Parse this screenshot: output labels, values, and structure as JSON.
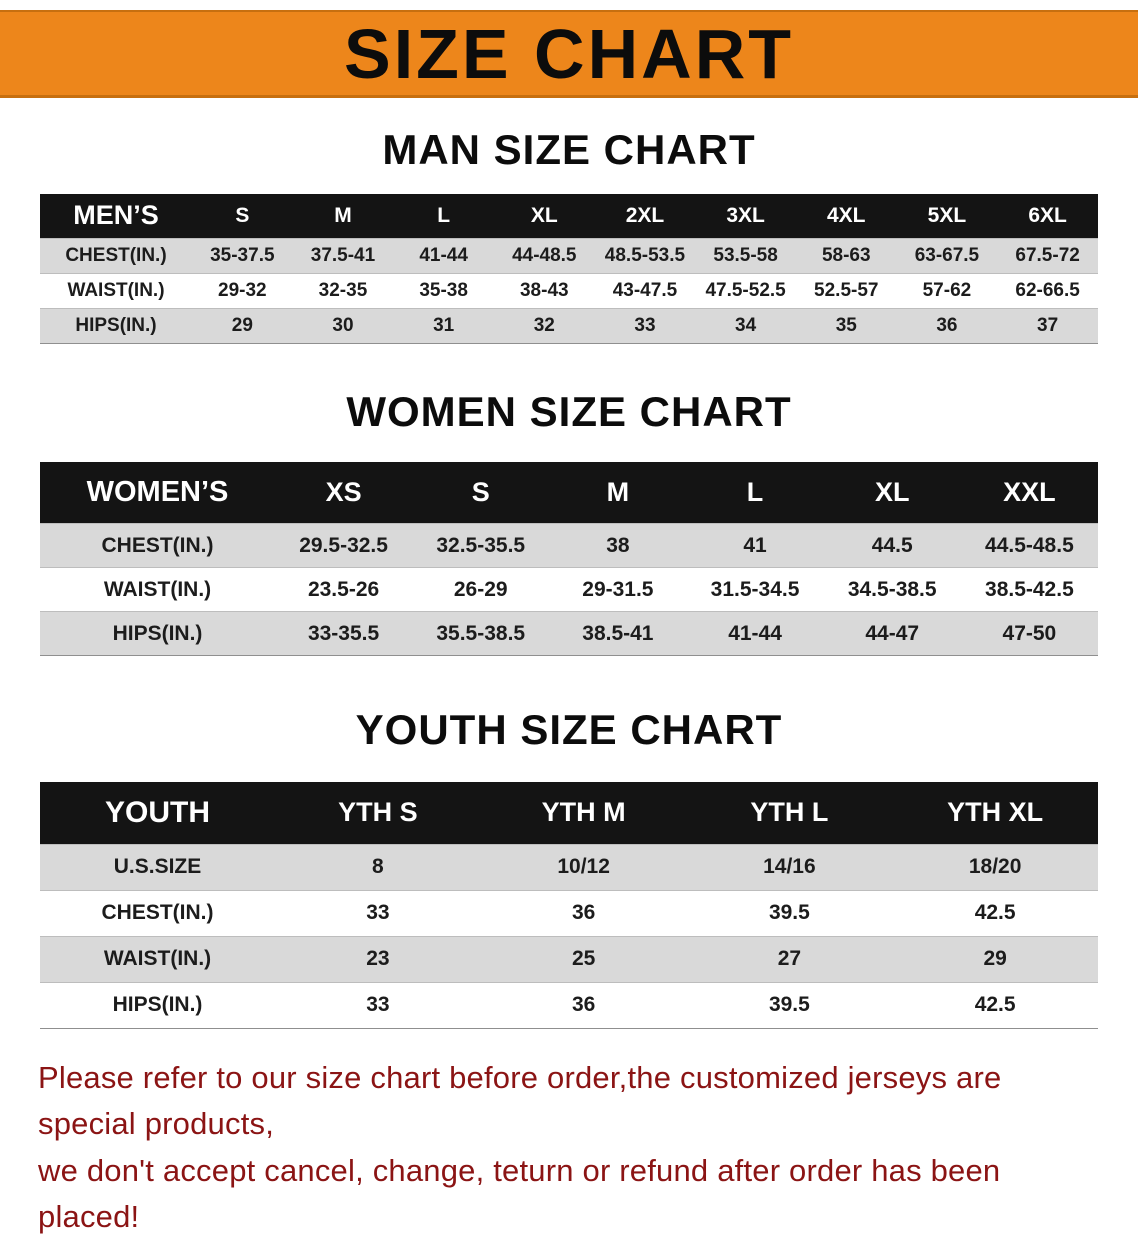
{
  "banner": {
    "title": "SIZE CHART"
  },
  "colors": {
    "banner-bg": "#ED861B",
    "header-bg": "#141414",
    "row-alt": "#d9d9d9",
    "disclaimer-color": "#8B1414"
  },
  "sections": [
    {
      "title": "MAN SIZE CHART",
      "table": {
        "header": [
          "MEN’S",
          "S",
          "M",
          "L",
          "XL",
          "2XL",
          "3XL",
          "4XL",
          "5XL",
          "6XL"
        ],
        "rows": [
          {
            "label": "CHEST(IN.)",
            "values": [
              "35-37.5",
              "37.5-41",
              "41-44",
              "44-48.5",
              "48.5-53.5",
              "53.5-58",
              "58-63",
              "63-67.5",
              "67.5-72"
            ]
          },
          {
            "label": "WAIST(IN.)",
            "values": [
              "29-32",
              "32-35",
              "35-38",
              "38-43",
              "43-47.5",
              "47.5-52.5",
              "52.5-57",
              "57-62",
              "62-66.5"
            ]
          },
          {
            "label": "HIPS(IN.)",
            "values": [
              "29",
              "30",
              "31",
              "32",
              "33",
              "34",
              "35",
              "36",
              "37"
            ]
          }
        ]
      }
    },
    {
      "title": "WOMEN SIZE CHART",
      "table": {
        "header": [
          "WOMEN’S",
          "XS",
          "S",
          "M",
          "L",
          "XL",
          "XXL"
        ],
        "rows": [
          {
            "label": "CHEST(IN.)",
            "values": [
              "29.5-32.5",
              "32.5-35.5",
              "38",
              "41",
              "44.5",
              "44.5-48.5"
            ]
          },
          {
            "label": "WAIST(IN.)",
            "values": [
              "23.5-26",
              "26-29",
              "29-31.5",
              "31.5-34.5",
              "34.5-38.5",
              "38.5-42.5"
            ]
          },
          {
            "label": "HIPS(IN.)",
            "values": [
              "33-35.5",
              "35.5-38.5",
              "38.5-41",
              "41-44",
              "44-47",
              "47-50"
            ]
          }
        ]
      }
    },
    {
      "title": "YOUTH SIZE CHART",
      "table": {
        "header": [
          "YOUTH",
          "YTH S",
          "YTH M",
          "YTH L",
          "YTH XL"
        ],
        "rows": [
          {
            "label": "U.S.SIZE",
            "values": [
              "8",
              "10/12",
              "14/16",
              "18/20"
            ]
          },
          {
            "label": "CHEST(IN.)",
            "values": [
              "33",
              "36",
              "39.5",
              "42.5"
            ]
          },
          {
            "label": "WAIST(IN.)",
            "values": [
              "23",
              "25",
              "27",
              "29"
            ]
          },
          {
            "label": "HIPS(IN.)",
            "values": [
              "33",
              "36",
              "39.5",
              "42.5"
            ]
          }
        ]
      }
    }
  ],
  "disclaimer": {
    "line1": "Please refer to our size chart before order,the customized jerseys are special products,",
    "line2": "we don't accept cancel, change, teturn or refund after order has been placed!"
  }
}
